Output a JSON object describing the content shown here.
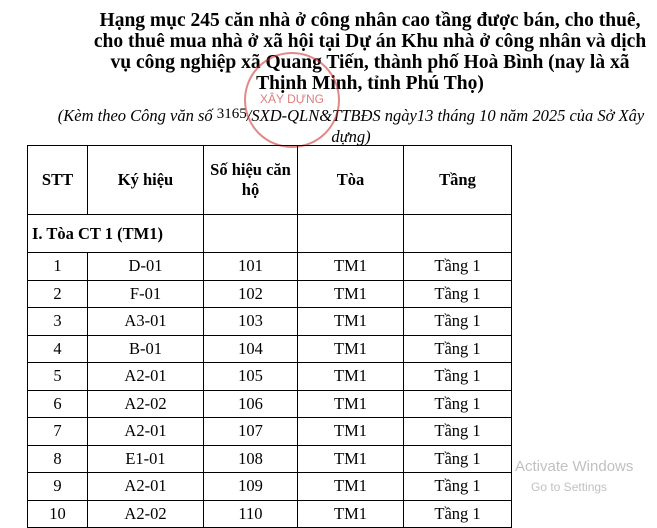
{
  "title": "Hạng mục 245 căn nhà ở công nhân cao tầng được bán, cho thuê, cho thuê mua nhà ở xã hội tại Dự án Khu nhà ở công nhân và dịch vụ công nghiệp xã Quang Tiến, thành phố Hoà Bình (nay là xã Thịnh Minh, tỉnh Phú Thọ)",
  "subtitle": {
    "prefix": "(Kèm theo Công văn số ",
    "number": "3165",
    "suffix": "/SXD-QLN&TTBĐS ngày13 tháng 10 năm 2025 của Sở Xây dựng)"
  },
  "stamp": {
    "text": "XÂY DỰNG",
    "color": "#c82828"
  },
  "table": {
    "headers": [
      "STT",
      "Ký hiệu",
      "Số hiệu căn hộ",
      "Tòa",
      "Tầng"
    ],
    "section": "I. Tòa CT 1 (TM1)",
    "rows": [
      [
        "1",
        "D-01",
        "101",
        "TM1",
        "Tầng 1"
      ],
      [
        "2",
        "F-01",
        "102",
        "TM1",
        "Tầng 1"
      ],
      [
        "3",
        "A3-01",
        "103",
        "TM1",
        "Tầng 1"
      ],
      [
        "4",
        "B-01",
        "104",
        "TM1",
        "Tầng 1"
      ],
      [
        "5",
        "A2-01",
        "105",
        "TM1",
        "Tầng 1"
      ],
      [
        "6",
        "A2-02",
        "106",
        "TM1",
        "Tầng 1"
      ],
      [
        "7",
        "A2-01",
        "107",
        "TM1",
        "Tầng 1"
      ],
      [
        "8",
        "E1-01",
        "108",
        "TM1",
        "Tầng 1"
      ],
      [
        "9",
        "A2-01",
        "109",
        "TM1",
        "Tầng 1"
      ],
      [
        "10",
        "A2-02",
        "110",
        "TM1",
        "Tầng 1"
      ]
    ]
  },
  "watermark": {
    "line1": "Activate Windows",
    "line2": "Go to Settings"
  }
}
